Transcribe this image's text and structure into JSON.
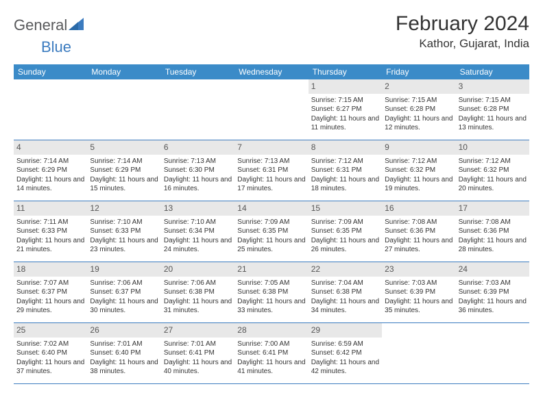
{
  "brand": {
    "word1": "General",
    "word2": "Blue"
  },
  "title": "February 2024",
  "location": "Kathor, Gujarat, India",
  "colors": {
    "header_bg": "#3b8bc8",
    "header_text": "#ffffff",
    "daynum_bg": "#e8e8e8",
    "border": "#3b7bbf",
    "text": "#333333",
    "logo_gray": "#58595b",
    "logo_blue": "#3b7bbf",
    "page_bg": "#ffffff"
  },
  "day_names": [
    "Sunday",
    "Monday",
    "Tuesday",
    "Wednesday",
    "Thursday",
    "Friday",
    "Saturday"
  ],
  "weeks": [
    [
      {
        "num": "",
        "sunrise": "",
        "sunset": "",
        "daylight": ""
      },
      {
        "num": "",
        "sunrise": "",
        "sunset": "",
        "daylight": ""
      },
      {
        "num": "",
        "sunrise": "",
        "sunset": "",
        "daylight": ""
      },
      {
        "num": "",
        "sunrise": "",
        "sunset": "",
        "daylight": ""
      },
      {
        "num": "1",
        "sunrise": "Sunrise: 7:15 AM",
        "sunset": "Sunset: 6:27 PM",
        "daylight": "Daylight: 11 hours and 11 minutes."
      },
      {
        "num": "2",
        "sunrise": "Sunrise: 7:15 AM",
        "sunset": "Sunset: 6:28 PM",
        "daylight": "Daylight: 11 hours and 12 minutes."
      },
      {
        "num": "3",
        "sunrise": "Sunrise: 7:15 AM",
        "sunset": "Sunset: 6:28 PM",
        "daylight": "Daylight: 11 hours and 13 minutes."
      }
    ],
    [
      {
        "num": "4",
        "sunrise": "Sunrise: 7:14 AM",
        "sunset": "Sunset: 6:29 PM",
        "daylight": "Daylight: 11 hours and 14 minutes."
      },
      {
        "num": "5",
        "sunrise": "Sunrise: 7:14 AM",
        "sunset": "Sunset: 6:29 PM",
        "daylight": "Daylight: 11 hours and 15 minutes."
      },
      {
        "num": "6",
        "sunrise": "Sunrise: 7:13 AM",
        "sunset": "Sunset: 6:30 PM",
        "daylight": "Daylight: 11 hours and 16 minutes."
      },
      {
        "num": "7",
        "sunrise": "Sunrise: 7:13 AM",
        "sunset": "Sunset: 6:31 PM",
        "daylight": "Daylight: 11 hours and 17 minutes."
      },
      {
        "num": "8",
        "sunrise": "Sunrise: 7:12 AM",
        "sunset": "Sunset: 6:31 PM",
        "daylight": "Daylight: 11 hours and 18 minutes."
      },
      {
        "num": "9",
        "sunrise": "Sunrise: 7:12 AM",
        "sunset": "Sunset: 6:32 PM",
        "daylight": "Daylight: 11 hours and 19 minutes."
      },
      {
        "num": "10",
        "sunrise": "Sunrise: 7:12 AM",
        "sunset": "Sunset: 6:32 PM",
        "daylight": "Daylight: 11 hours and 20 minutes."
      }
    ],
    [
      {
        "num": "11",
        "sunrise": "Sunrise: 7:11 AM",
        "sunset": "Sunset: 6:33 PM",
        "daylight": "Daylight: 11 hours and 21 minutes."
      },
      {
        "num": "12",
        "sunrise": "Sunrise: 7:10 AM",
        "sunset": "Sunset: 6:33 PM",
        "daylight": "Daylight: 11 hours and 23 minutes."
      },
      {
        "num": "13",
        "sunrise": "Sunrise: 7:10 AM",
        "sunset": "Sunset: 6:34 PM",
        "daylight": "Daylight: 11 hours and 24 minutes."
      },
      {
        "num": "14",
        "sunrise": "Sunrise: 7:09 AM",
        "sunset": "Sunset: 6:35 PM",
        "daylight": "Daylight: 11 hours and 25 minutes."
      },
      {
        "num": "15",
        "sunrise": "Sunrise: 7:09 AM",
        "sunset": "Sunset: 6:35 PM",
        "daylight": "Daylight: 11 hours and 26 minutes."
      },
      {
        "num": "16",
        "sunrise": "Sunrise: 7:08 AM",
        "sunset": "Sunset: 6:36 PM",
        "daylight": "Daylight: 11 hours and 27 minutes."
      },
      {
        "num": "17",
        "sunrise": "Sunrise: 7:08 AM",
        "sunset": "Sunset: 6:36 PM",
        "daylight": "Daylight: 11 hours and 28 minutes."
      }
    ],
    [
      {
        "num": "18",
        "sunrise": "Sunrise: 7:07 AM",
        "sunset": "Sunset: 6:37 PM",
        "daylight": "Daylight: 11 hours and 29 minutes."
      },
      {
        "num": "19",
        "sunrise": "Sunrise: 7:06 AM",
        "sunset": "Sunset: 6:37 PM",
        "daylight": "Daylight: 11 hours and 30 minutes."
      },
      {
        "num": "20",
        "sunrise": "Sunrise: 7:06 AM",
        "sunset": "Sunset: 6:38 PM",
        "daylight": "Daylight: 11 hours and 31 minutes."
      },
      {
        "num": "21",
        "sunrise": "Sunrise: 7:05 AM",
        "sunset": "Sunset: 6:38 PM",
        "daylight": "Daylight: 11 hours and 33 minutes."
      },
      {
        "num": "22",
        "sunrise": "Sunrise: 7:04 AM",
        "sunset": "Sunset: 6:38 PM",
        "daylight": "Daylight: 11 hours and 34 minutes."
      },
      {
        "num": "23",
        "sunrise": "Sunrise: 7:03 AM",
        "sunset": "Sunset: 6:39 PM",
        "daylight": "Daylight: 11 hours and 35 minutes."
      },
      {
        "num": "24",
        "sunrise": "Sunrise: 7:03 AM",
        "sunset": "Sunset: 6:39 PM",
        "daylight": "Daylight: 11 hours and 36 minutes."
      }
    ],
    [
      {
        "num": "25",
        "sunrise": "Sunrise: 7:02 AM",
        "sunset": "Sunset: 6:40 PM",
        "daylight": "Daylight: 11 hours and 37 minutes."
      },
      {
        "num": "26",
        "sunrise": "Sunrise: 7:01 AM",
        "sunset": "Sunset: 6:40 PM",
        "daylight": "Daylight: 11 hours and 38 minutes."
      },
      {
        "num": "27",
        "sunrise": "Sunrise: 7:01 AM",
        "sunset": "Sunset: 6:41 PM",
        "daylight": "Daylight: 11 hours and 40 minutes."
      },
      {
        "num": "28",
        "sunrise": "Sunrise: 7:00 AM",
        "sunset": "Sunset: 6:41 PM",
        "daylight": "Daylight: 11 hours and 41 minutes."
      },
      {
        "num": "29",
        "sunrise": "Sunrise: 6:59 AM",
        "sunset": "Sunset: 6:42 PM",
        "daylight": "Daylight: 11 hours and 42 minutes."
      },
      {
        "num": "",
        "sunrise": "",
        "sunset": "",
        "daylight": ""
      },
      {
        "num": "",
        "sunrise": "",
        "sunset": "",
        "daylight": ""
      }
    ]
  ]
}
